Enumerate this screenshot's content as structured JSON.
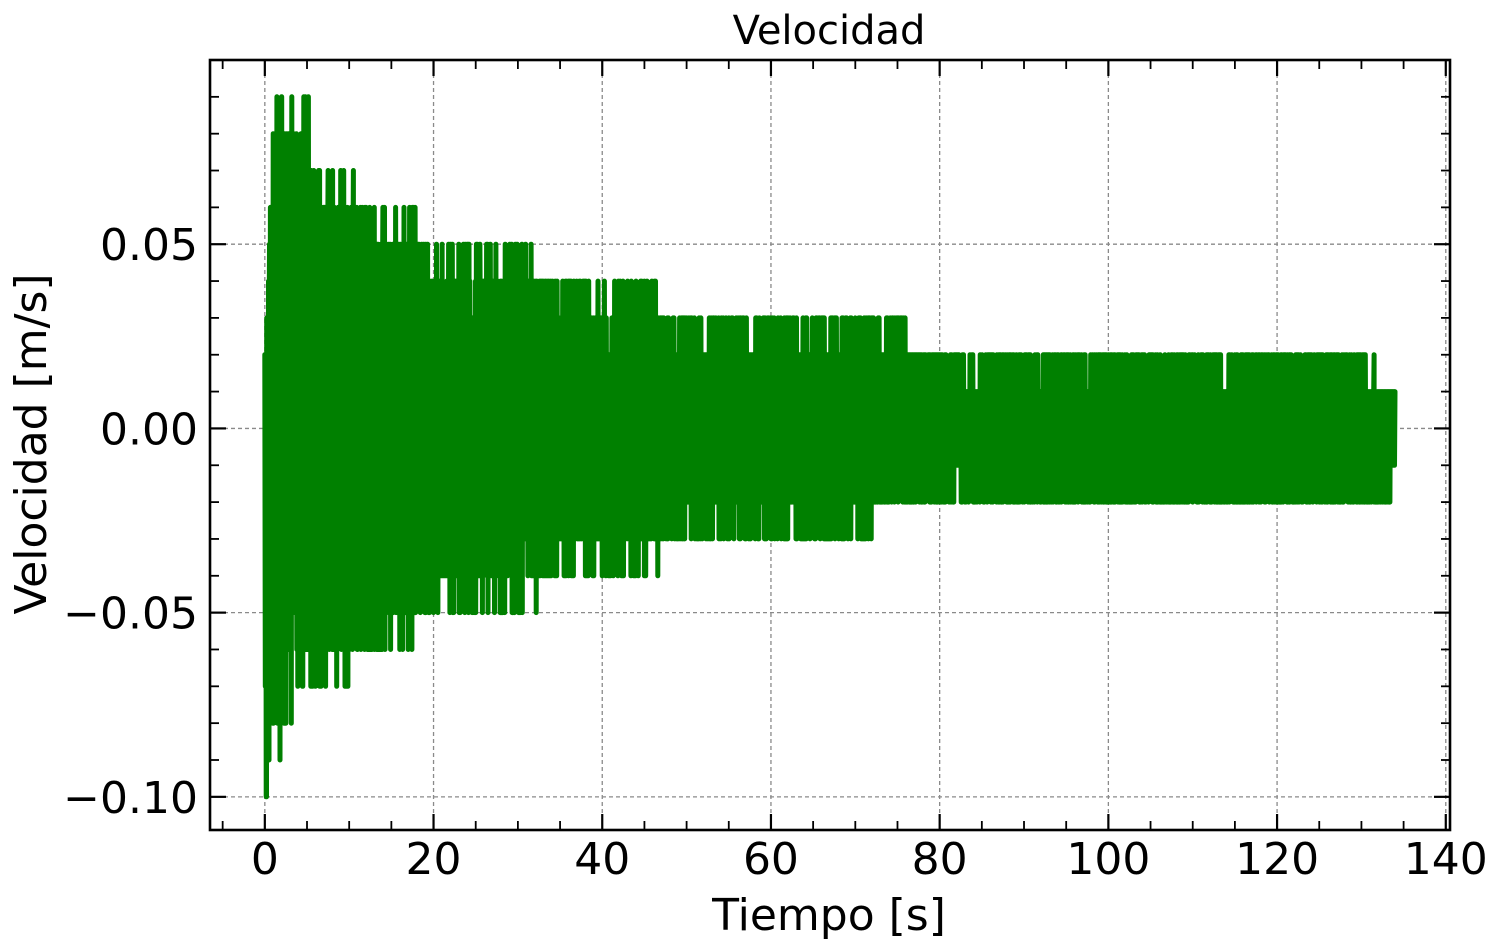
{
  "chart_data": {
    "type": "line",
    "title": "Velocidad",
    "xlabel": "Tiempo [s]",
    "ylabel": "Velocidad [m/s]",
    "xlim": [
      -6.5,
      140.5
    ],
    "ylim": [
      -0.109,
      0.1
    ],
    "x_ticks": [
      0,
      20,
      40,
      60,
      80,
      100,
      120,
      140
    ],
    "x_tick_labels": [
      "0",
      "20",
      "40",
      "60",
      "80",
      "100",
      "120",
      "140"
    ],
    "y_ticks": [
      -0.1,
      -0.05,
      0.0,
      0.05
    ],
    "y_tick_labels": [
      "−0.10",
      "−0.05",
      "0.00",
      "0.05"
    ],
    "grid": true,
    "line_color": "#008000",
    "sampling": "velocity quantized to 0.01 m/s steps, rapidly oscillating signal from 0 s to about 134 s",
    "envelope": {
      "t": [
        0,
        1,
        2,
        3,
        5,
        7,
        10,
        13,
        17,
        20,
        25,
        30,
        35,
        40,
        45,
        50,
        55,
        60,
        65,
        70,
        75,
        80,
        90,
        93,
        100,
        110,
        120,
        130,
        134
      ],
      "upper": [
        0.02,
        0.09,
        0.09,
        0.09,
        0.09,
        0.07,
        0.07,
        0.06,
        0.06,
        0.05,
        0.05,
        0.05,
        0.04,
        0.04,
        0.04,
        0.03,
        0.03,
        0.03,
        0.03,
        0.03,
        0.03,
        0.02,
        0.02,
        0.02,
        0.02,
        0.02,
        0.02,
        0.02,
        0.01
      ],
      "lower": [
        -0.1,
        -0.09,
        -0.09,
        -0.08,
        -0.07,
        -0.07,
        -0.07,
        -0.06,
        -0.06,
        -0.05,
        -0.05,
        -0.05,
        -0.04,
        -0.04,
        -0.04,
        -0.03,
        -0.03,
        -0.03,
        -0.03,
        -0.03,
        -0.02,
        -0.02,
        -0.02,
        -0.02,
        -0.02,
        -0.02,
        -0.02,
        -0.02,
        -0.02
      ]
    },
    "spikes": {
      "upper": [
        [
          0.5,
          0.02
        ],
        [
          2,
          0.09
        ],
        [
          3.2,
          0.09
        ],
        [
          4.8,
          0.09
        ],
        [
          5.8,
          0.07
        ],
        [
          7.5,
          0.07
        ],
        [
          9,
          0.07
        ],
        [
          10.5,
          0.07
        ],
        [
          12,
          0.06
        ],
        [
          14,
          0.06
        ],
        [
          15.5,
          0.06
        ],
        [
          17.5,
          0.06
        ],
        [
          19.3,
          0.05
        ],
        [
          23,
          0.05
        ],
        [
          25.5,
          0.05
        ],
        [
          29.9,
          0.05
        ],
        [
          33,
          0.04
        ],
        [
          36,
          0.04
        ],
        [
          39.5,
          0.04
        ],
        [
          45,
          0.04
        ],
        [
          50,
          0.03
        ],
        [
          55,
          0.03
        ],
        [
          60,
          0.03
        ],
        [
          66,
          0.03
        ],
        [
          70,
          0.03
        ],
        [
          75.5,
          0.03
        ],
        [
          92.5,
          0.02
        ],
        [
          100,
          0.02
        ],
        [
          110,
          0.02
        ],
        [
          115,
          0.02
        ],
        [
          120,
          0.02
        ],
        [
          131.5,
          0.02
        ]
      ],
      "lower": [
        [
          0.2,
          -0.1
        ],
        [
          1.8,
          -0.09
        ],
        [
          2.5,
          -0.08
        ],
        [
          4.5,
          -0.07
        ],
        [
          6.5,
          -0.07
        ],
        [
          9.5,
          -0.07
        ],
        [
          11,
          -0.06
        ],
        [
          13,
          -0.06
        ],
        [
          16,
          -0.06
        ],
        [
          17,
          -0.06
        ],
        [
          20,
          -0.05
        ],
        [
          25,
          -0.05
        ],
        [
          29.6,
          -0.05
        ],
        [
          32,
          -0.04
        ],
        [
          36,
          -0.04
        ],
        [
          40,
          -0.04
        ],
        [
          45,
          -0.04
        ],
        [
          55,
          -0.03
        ],
        [
          60,
          -0.03
        ],
        [
          64,
          -0.03
        ],
        [
          67,
          -0.03
        ],
        [
          70.3,
          -0.03
        ],
        [
          92.3,
          -0.02
        ],
        [
          110,
          -0.02
        ],
        [
          125,
          -0.02
        ],
        [
          129.5,
          -0.02
        ],
        [
          133.3,
          -0.02
        ]
      ]
    }
  }
}
